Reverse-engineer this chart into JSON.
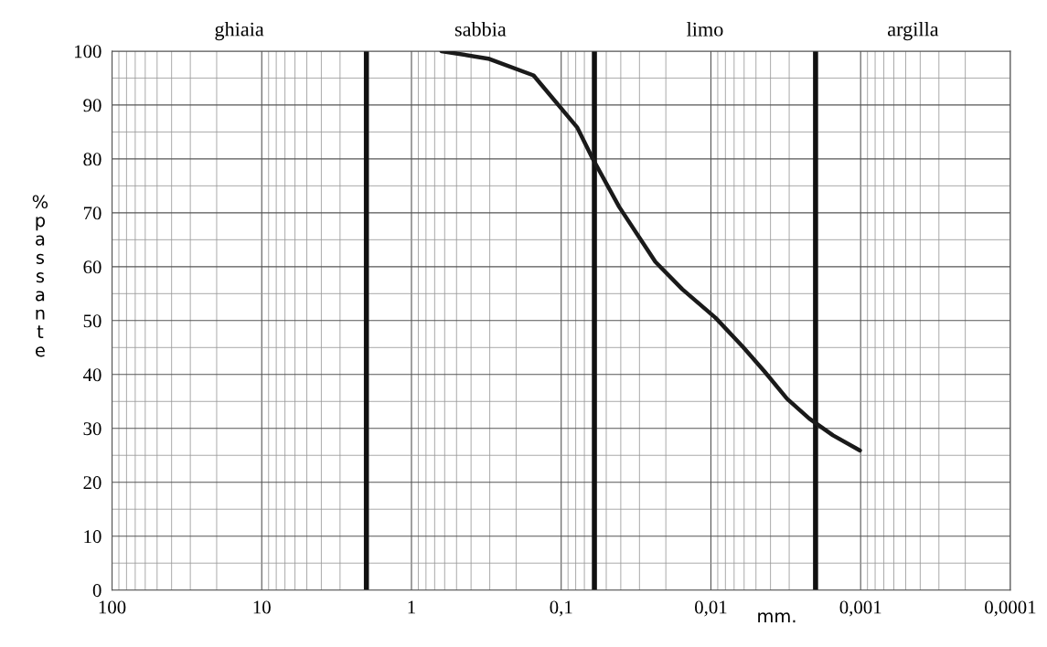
{
  "chart_data": {
    "type": "line",
    "xlabel": "mm.",
    "ylabel": "% passante",
    "log": "x",
    "xlim": [
      100,
      0.0001
    ],
    "xticks": [
      100,
      10,
      {
        "value": 1,
        "label": "1"
      },
      {
        "value": 0.1,
        "label": "0,1"
      },
      {
        "value": 0.01,
        "label": "0,01"
      },
      {
        "value": 0.001,
        "label": "0,001"
      },
      {
        "value": 0.0001,
        "label": "0,0001"
      }
    ],
    "ylim": [
      0,
      100
    ],
    "yticks": [
      0,
      10,
      20,
      30,
      40,
      50,
      60,
      70,
      80,
      90,
      100
    ],
    "grid": true,
    "marker": "none",
    "line_style": "solid",
    "series": [
      {
        "color": "#1a1a1a",
        "x": [
          0.63,
          0.307,
          0.153,
          0.078,
          0.062,
          0.041,
          0.0235,
          0.0155,
          0.0093,
          0.0061,
          0.0044,
          0.0031,
          0.0022,
          0.00153,
          0.00101
        ],
        "values": [
          100,
          98.6,
          95.5,
          85.8,
          80.2,
          71.1,
          60.9,
          55.8,
          50.5,
          45.1,
          40.6,
          35.5,
          31.8,
          28.7,
          25.9
        ]
      }
    ],
    "ref_lines": [
      {
        "axis": "x",
        "value": 2,
        "color": "#111111"
      },
      {
        "axis": "x",
        "value": 0.06,
        "color": "#111111"
      },
      {
        "axis": "x",
        "value": 0.002,
        "color": "#111111"
      }
    ],
    "annotations": [
      "ghiaia",
      "sabbia",
      "limo",
      "argilla"
    ]
  }
}
